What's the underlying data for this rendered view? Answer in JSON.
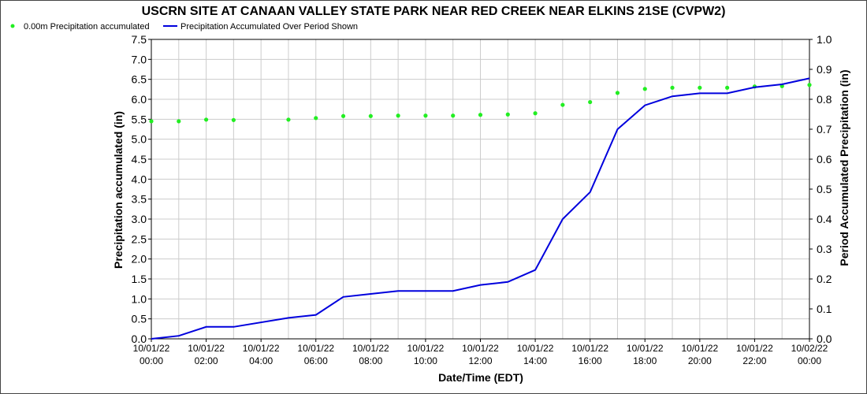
{
  "chart_data": {
    "type": "line",
    "title": "USCRN SITE AT CANAAN VALLEY STATE PARK NEAR RED CREEK NEAR ELKINS 21SE (CVPW2)",
    "xlabel": "Date/Time (EDT)",
    "ylabel_left": "Precipitation accumulated (in)",
    "ylabel_right": "Period Accumulated Precipitation (in)",
    "ylim_left": [
      0,
      7.5
    ],
    "ylim_right": [
      0,
      1.0
    ],
    "yticks_left": [
      "0.0",
      "0.5",
      "1.0",
      "1.5",
      "2.0",
      "2.5",
      "3.0",
      "3.5",
      "4.0",
      "4.5",
      "5.0",
      "5.5",
      "6.0",
      "6.5",
      "7.0",
      "7.5"
    ],
    "yticks_right": [
      "0.0",
      "0.1",
      "0.2",
      "0.3",
      "0.4",
      "0.5",
      "0.6",
      "0.7",
      "0.8",
      "0.9",
      "1.0"
    ],
    "xticks": [
      {
        "date": "10/01/22",
        "time": "00:00"
      },
      {
        "date": "10/01/22",
        "time": "02:00"
      },
      {
        "date": "10/01/22",
        "time": "04:00"
      },
      {
        "date": "10/01/22",
        "time": "06:00"
      },
      {
        "date": "10/01/22",
        "time": "08:00"
      },
      {
        "date": "10/01/22",
        "time": "10:00"
      },
      {
        "date": "10/01/22",
        "time": "12:00"
      },
      {
        "date": "10/01/22",
        "time": "14:00"
      },
      {
        "date": "10/01/22",
        "time": "16:00"
      },
      {
        "date": "10/01/22",
        "time": "18:00"
      },
      {
        "date": "10/01/22",
        "time": "20:00"
      },
      {
        "date": "10/01/22",
        "time": "22:00"
      },
      {
        "date": "10/02/22",
        "time": "00:00"
      }
    ],
    "grid": true,
    "legend_position": "top-left",
    "series": [
      {
        "name": "0.00m Precipitation accumulated",
        "axis": "left",
        "style": "points",
        "color": "#22ee22",
        "x": [
          "10/01/22 00:00",
          "10/01/22 01:00",
          "10/01/22 02:00",
          "10/01/22 03:00",
          "10/01/22 05:00",
          "10/01/22 06:00",
          "10/01/22 07:00",
          "10/01/22 08:00",
          "10/01/22 09:00",
          "10/01/22 10:00",
          "10/01/22 11:00",
          "10/01/22 12:00",
          "10/01/22 13:00",
          "10/01/22 14:00",
          "10/01/22 15:00",
          "10/01/22 16:00",
          "10/01/22 17:00",
          "10/01/22 18:00",
          "10/01/22 19:00",
          "10/01/22 20:00",
          "10/01/22 21:00",
          "10/01/22 22:00",
          "10/01/22 23:00",
          "10/02/22 00:00"
        ],
        "values": [
          5.45,
          5.45,
          5.49,
          5.48,
          5.49,
          5.53,
          5.58,
          5.58,
          5.59,
          5.59,
          5.59,
          5.61,
          5.62,
          5.65,
          5.86,
          5.93,
          6.16,
          6.26,
          6.29,
          6.29,
          6.29,
          6.32,
          6.33,
          6.36
        ]
      },
      {
        "name": "Precipitation Accumulated Over Period Shown",
        "axis": "right",
        "style": "line",
        "color": "#0000dd",
        "x": [
          "10/01/22 00:00",
          "10/01/22 01:00",
          "10/01/22 02:00",
          "10/01/22 03:00",
          "10/01/22 05:00",
          "10/01/22 06:00",
          "10/01/22 07:00",
          "10/01/22 08:00",
          "10/01/22 09:00",
          "10/01/22 10:00",
          "10/01/22 11:00",
          "10/01/22 12:00",
          "10/01/22 13:00",
          "10/01/22 14:00",
          "10/01/22 15:00",
          "10/01/22 16:00",
          "10/01/22 17:00",
          "10/01/22 18:00",
          "10/01/22 19:00",
          "10/01/22 20:00",
          "10/01/22 21:00",
          "10/01/22 22:00",
          "10/01/22 23:00",
          "10/02/22 00:00"
        ],
        "values": [
          0.0,
          0.01,
          0.04,
          0.04,
          0.07,
          0.08,
          0.14,
          0.15,
          0.16,
          0.16,
          0.16,
          0.18,
          0.19,
          0.23,
          0.4,
          0.49,
          0.7,
          0.78,
          0.81,
          0.82,
          0.82,
          0.84,
          0.85,
          0.87
        ]
      }
    ]
  }
}
